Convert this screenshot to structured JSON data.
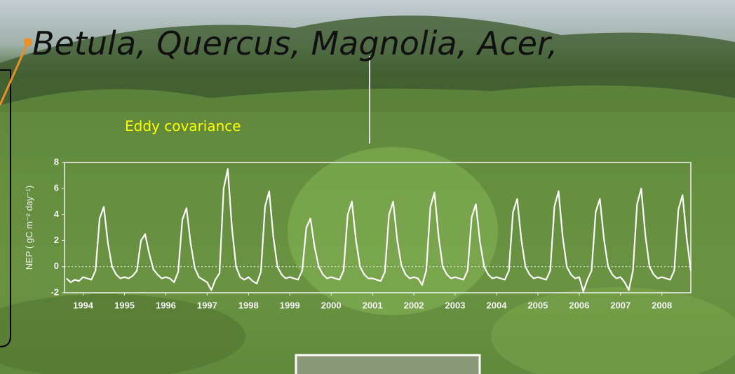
{
  "slide": {
    "heading": "Betula, Quercus, Magnolia, Acer,"
  },
  "chart_data": {
    "type": "line",
    "title": "Eddy covariance",
    "y_label": "NEP ( gC m⁻² day⁻¹)",
    "color": "#ffffff",
    "zero_line": true,
    "xlim": [
      1993.55,
      2008.7
    ],
    "xticks": [
      1994,
      1995,
      1996,
      1997,
      1998,
      1999,
      2000,
      2001,
      2002,
      2003,
      2004,
      2005,
      2006,
      2007,
      2008
    ],
    "ylim": [
      -2,
      8
    ],
    "yticks": [
      -2,
      0,
      2,
      4,
      6,
      8
    ],
    "x": [
      1993.6,
      1993.7,
      1993.8,
      1993.9,
      1994.0,
      1994.1,
      1994.2,
      1994.3,
      1994.4,
      1994.5,
      1994.6,
      1994.7,
      1994.8,
      1994.9,
      1995.0,
      1995.1,
      1995.2,
      1995.3,
      1995.4,
      1995.5,
      1995.6,
      1995.7,
      1995.8,
      1995.9,
      1996.0,
      1996.1,
      1996.2,
      1996.3,
      1996.4,
      1996.5,
      1996.6,
      1996.7,
      1996.8,
      1996.9,
      1997.0,
      1997.1,
      1997.2,
      1997.3,
      1997.4,
      1997.5,
      1997.6,
      1997.7,
      1997.8,
      1997.9,
      1998.0,
      1998.1,
      1998.2,
      1998.3,
      1998.4,
      1998.5,
      1998.6,
      1998.7,
      1998.8,
      1998.9,
      1999.0,
      1999.1,
      1999.2,
      1999.3,
      1999.4,
      1999.5,
      1999.6,
      1999.7,
      1999.8,
      1999.9,
      2000.0,
      2000.1,
      2000.2,
      2000.3,
      2000.4,
      2000.5,
      2000.6,
      2000.7,
      2000.8,
      2000.9,
      2001.0,
      2001.1,
      2001.2,
      2001.3,
      2001.4,
      2001.5,
      2001.6,
      2001.7,
      2001.8,
      2001.9,
      2002.0,
      2002.1,
      2002.2,
      2002.3,
      2002.4,
      2002.5,
      2002.6,
      2002.7,
      2002.8,
      2002.9,
      2003.0,
      2003.1,
      2003.2,
      2003.3,
      2003.4,
      2003.5,
      2003.6,
      2003.7,
      2003.8,
      2003.9,
      2004.0,
      2004.1,
      2004.2,
      2004.3,
      2004.4,
      2004.5,
      2004.6,
      2004.7,
      2004.8,
      2004.9,
      2005.0,
      2005.1,
      2005.2,
      2005.3,
      2005.4,
      2005.5,
      2005.6,
      2005.7,
      2005.8,
      2005.9,
      2006.0,
      2006.1,
      2006.2,
      2006.3,
      2006.4,
      2006.5,
      2006.6,
      2006.7,
      2006.8,
      2006.9,
      2007.0,
      2007.1,
      2007.2,
      2007.3,
      2007.4,
      2007.5,
      2007.6,
      2007.7,
      2007.8,
      2007.9,
      2008.0,
      2008.1,
      2008.2,
      2008.3,
      2008.4,
      2008.5,
      2008.6,
      2008.7
    ],
    "values": [
      -0.9,
      -1.2,
      -1.0,
      -1.1,
      -0.8,
      -0.9,
      -1.0,
      -0.3,
      3.7,
      4.6,
      1.8,
      0.0,
      -0.6,
      -0.9,
      -0.8,
      -0.9,
      -0.7,
      -0.3,
      2.0,
      2.5,
      1.0,
      -0.2,
      -0.6,
      -0.9,
      -0.8,
      -0.9,
      -1.2,
      -0.4,
      3.6,
      4.5,
      1.8,
      -0.1,
      -0.8,
      -1.0,
      -1.2,
      -1.8,
      -1.0,
      -0.5,
      6.0,
      7.5,
      3.0,
      0.0,
      -0.8,
      -1.0,
      -0.8,
      -1.1,
      -1.3,
      -0.4,
      4.6,
      5.8,
      2.3,
      0.0,
      -0.6,
      -0.9,
      -0.8,
      -0.9,
      -1.0,
      -0.3,
      3.0,
      3.7,
      1.5,
      0.0,
      -0.6,
      -0.9,
      -0.8,
      -0.9,
      -1.0,
      -0.3,
      4.0,
      5.0,
      2.0,
      0.0,
      -0.6,
      -0.9,
      -0.9,
      -1.0,
      -1.1,
      -0.4,
      4.0,
      5.0,
      2.0,
      0.1,
      -0.6,
      -0.9,
      -0.8,
      -0.9,
      -1.4,
      -0.3,
      4.6,
      5.7,
      2.3,
      0.0,
      -0.6,
      -0.9,
      -0.8,
      -0.9,
      -1.0,
      -0.3,
      3.8,
      4.8,
      1.9,
      0.0,
      -0.6,
      -0.9,
      -0.8,
      -0.9,
      -1.0,
      -0.3,
      4.2,
      5.2,
      2.1,
      0.0,
      -0.6,
      -0.9,
      -0.8,
      -0.9,
      -1.0,
      -0.3,
      4.6,
      5.8,
      2.3,
      0.0,
      -0.6,
      -0.9,
      -0.8,
      -1.9,
      -1.0,
      -0.3,
      4.2,
      5.2,
      2.1,
      0.0,
      -0.6,
      -0.9,
      -0.8,
      -1.2,
      -1.8,
      -0.3,
      4.8,
      6.0,
      2.4,
      0.0,
      -0.6,
      -0.9,
      -0.8,
      -0.9,
      -1.0,
      -0.3,
      4.4,
      5.5,
      2.2,
      -0.3
    ]
  }
}
